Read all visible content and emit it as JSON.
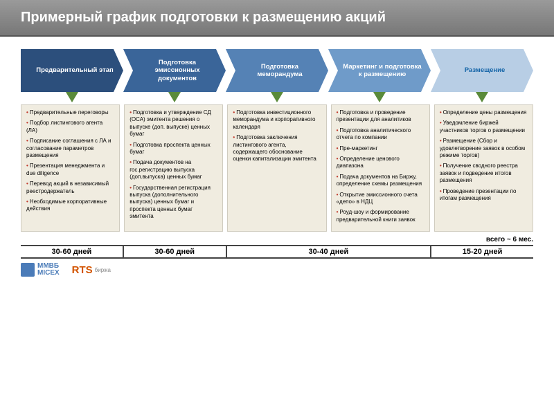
{
  "title": "Примерный график подготовки к размещению акций",
  "arrows": {
    "colors": [
      "#2c4f7c",
      "#3a6599",
      "#5582b5",
      "#6f9bc9",
      "#b8ceE5"
    ],
    "labels": [
      "Предварительный этап",
      "Подготовка эмиссионных документов",
      "Подготовка меморандума",
      "Маркетинг и подготовка к размещению",
      "Размещение"
    ]
  },
  "cols": {
    "c1": [
      "Предварительные переговоры",
      "Подбор листингового агента (ЛА)",
      "Подписание соглашения с ЛА и согласование параметров размещения",
      "Презентация менеджмента и due diligence",
      "Перевод акций в независимый реестродержатель",
      "Необходимые корпоративные действия"
    ],
    "c2": [
      "Подготовка и утверждение СД (ОСА) эмитента решения о выпуске (доп. выпуске) ценных бумаг",
      "Подготовка проспекта ценных бумаг",
      "Подача документов на гос.регистрацию выпуска (доп.выпуска) ценных бумаг",
      "Государственная регистрация выпуска (дополнительного выпуска) ценных бумаг и проспекта ценных бумаг эмитента"
    ],
    "c3": [
      "Подготовка инвестиционного меморандума и корпоративного календаря",
      "Подготовка заключения листингового агента, содержащего обоснование оценки капитализации эмитента"
    ],
    "c4": [
      "Подготовка и проведение презентации для аналитиков",
      "Подготовка аналитического отчета по компании",
      "Пре-маркетинг",
      "Определение ценового диапазона",
      "Подача документов на Биржу, определение схемы размещения",
      "Открытие эмиссионного счета «депо» в НДЦ",
      "Роуд-шоу и формирование предварительной книги заявок"
    ],
    "c5": [
      "Определение цены размещения",
      "Уведомление биржей участников торгов о размещении",
      "Размещение (Сбор и удовлетворение заявок в особом режиме торгов)",
      "Получение сводного реестра заявок и подведение итогов размещения",
      "Проведение презентации по итогам размещения"
    ]
  },
  "total": "всего ~ 6 мес.",
  "timeline": [
    "30-60 дней",
    "30-60 дней",
    "30-40 дней",
    "15-20 дней"
  ],
  "logos": {
    "mmvb_l1": "ММВБ",
    "mmvb_l2": "MICEX",
    "rts": "RTS",
    "rts_sub": "биржа"
  }
}
